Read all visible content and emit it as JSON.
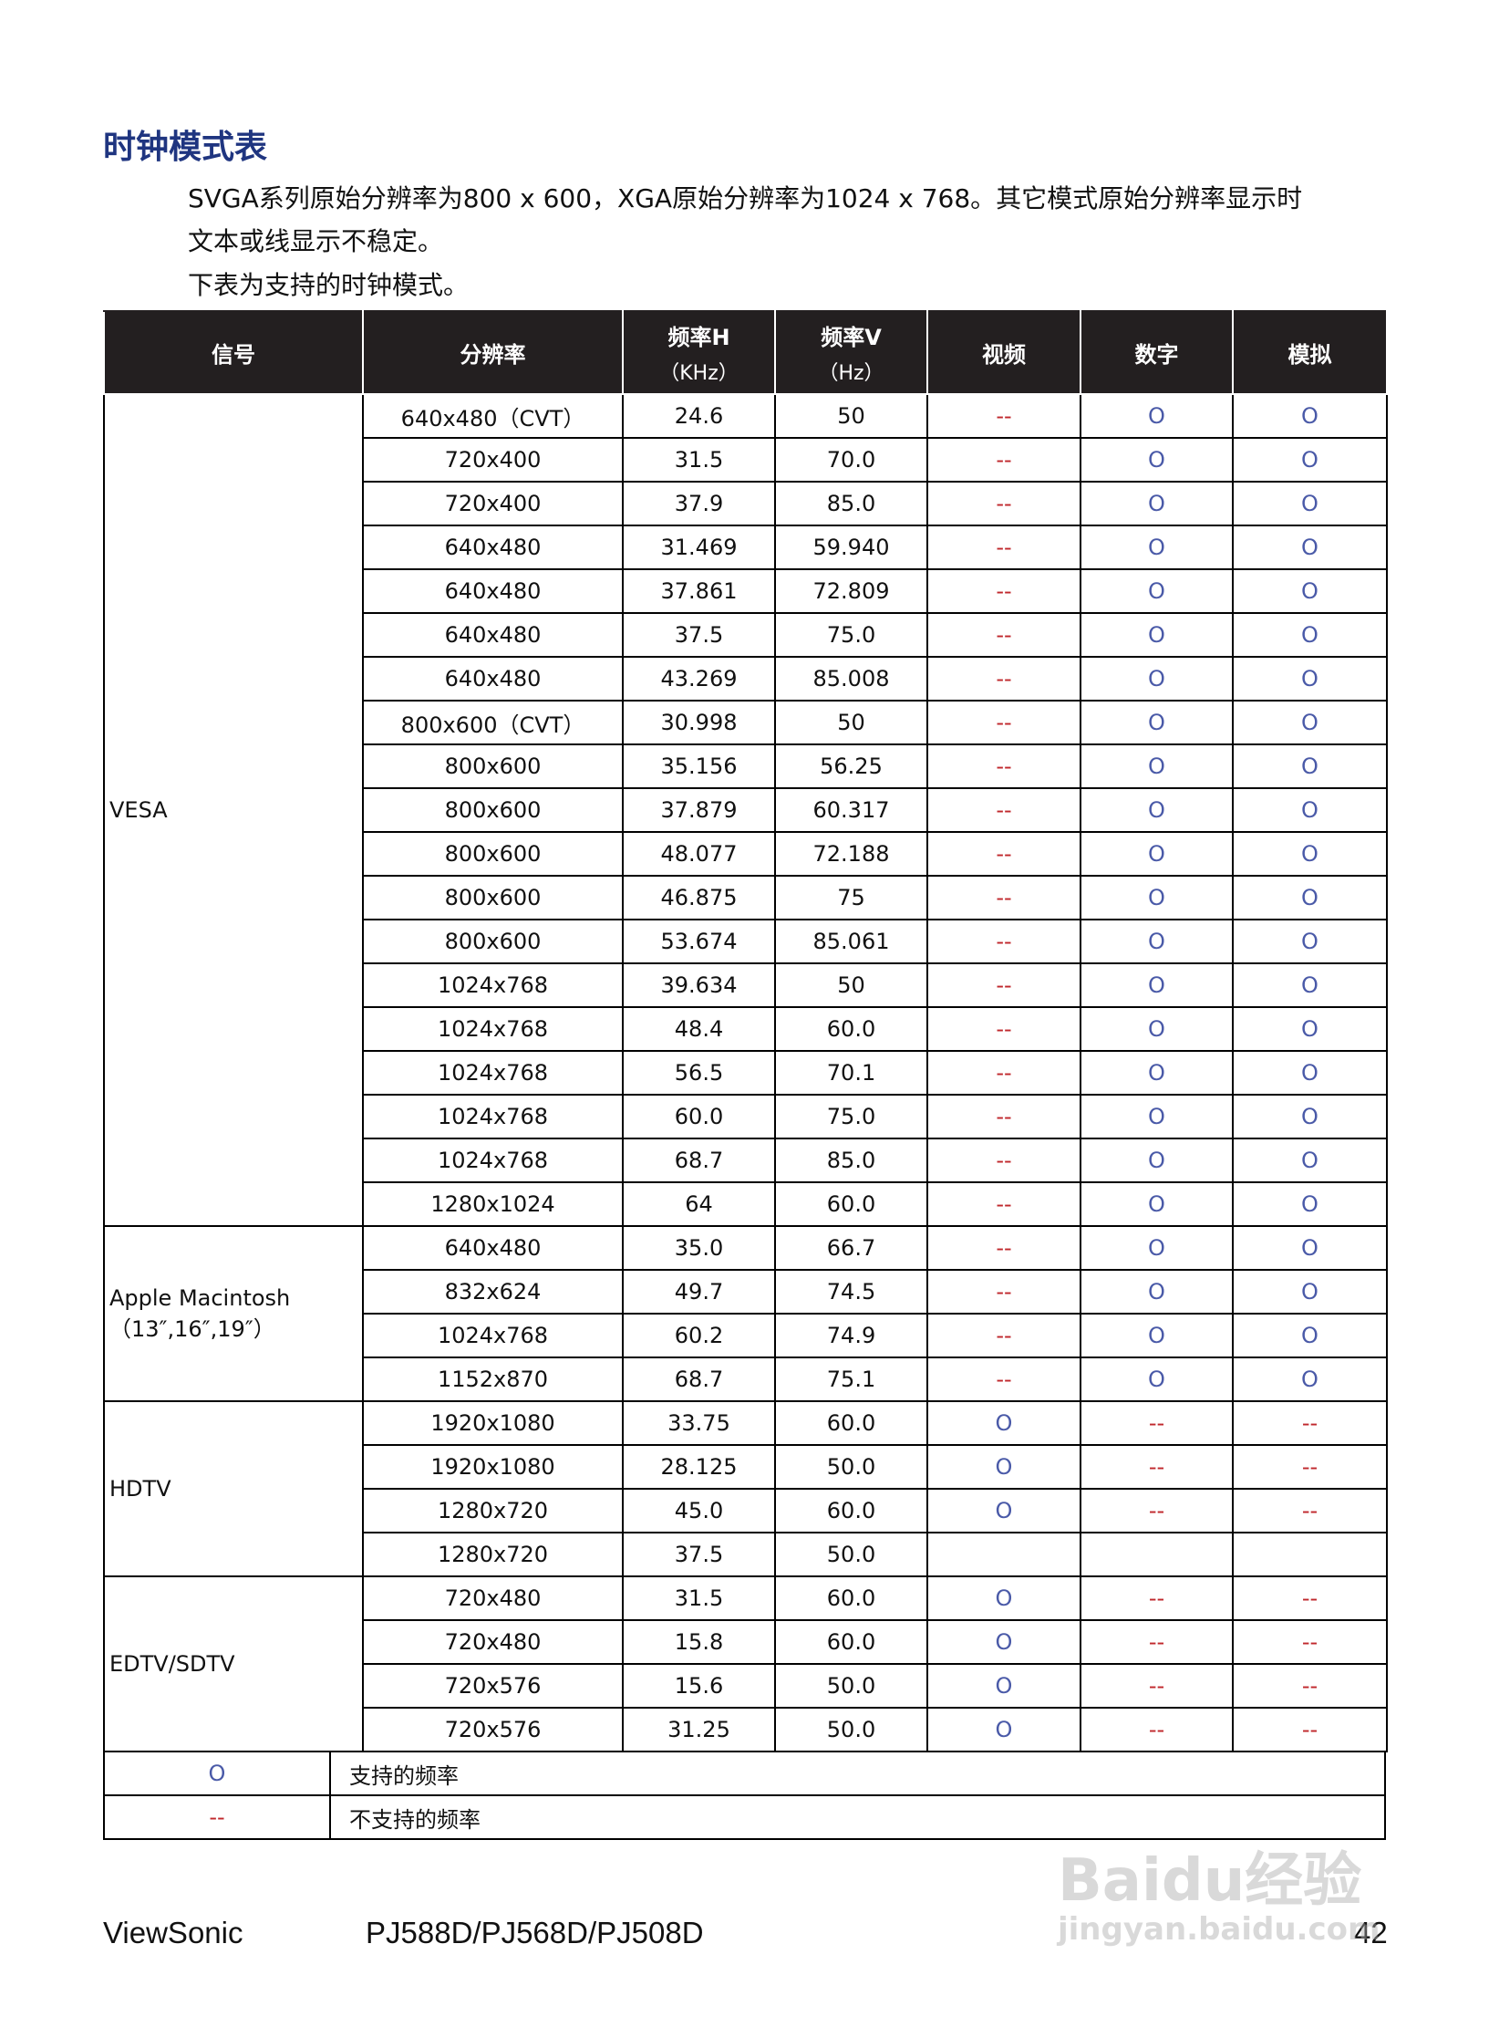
{
  "title": "时钟模式表",
  "intro": [
    "SVGA系列原始分辨率为800 x 600，XGA原始分辨率为1024 x 768。其它模式原始分辨率显示时",
    "文本或线显示不稳定。",
    "下表为支持的时钟模式。"
  ],
  "table": {
    "header": [
      [
        "信号"
      ],
      [
        "分辨率"
      ],
      [
        "频率H",
        "（KHz）"
      ],
      [
        "频率V",
        "（Hz）"
      ],
      [
        "视频"
      ],
      [
        "数字"
      ],
      [
        "模拟"
      ]
    ],
    "groups": [
      {
        "signal": [
          "VESA"
        ],
        "rows": [
          [
            "640x480（CVT）",
            "24.6",
            "50",
            "--",
            "O",
            "O"
          ],
          [
            "720x400",
            "31.5",
            "70.0",
            "--",
            "O",
            "O"
          ],
          [
            "720x400",
            "37.9",
            "85.0",
            "--",
            "O",
            "O"
          ],
          [
            "640x480",
            "31.469",
            "59.940",
            "--",
            "O",
            "O"
          ],
          [
            "640x480",
            "37.861",
            "72.809",
            "--",
            "O",
            "O"
          ],
          [
            "640x480",
            "37.5",
            "75.0",
            "--",
            "O",
            "O"
          ],
          [
            "640x480",
            "43.269",
            "85.008",
            "--",
            "O",
            "O"
          ],
          [
            "800x600（CVT）",
            "30.998",
            "50",
            "--",
            "O",
            "O"
          ],
          [
            "800x600",
            "35.156",
            "56.25",
            "--",
            "O",
            "O"
          ],
          [
            "800x600",
            "37.879",
            "60.317",
            "--",
            "O",
            "O"
          ],
          [
            "800x600",
            "48.077",
            "72.188",
            "--",
            "O",
            "O"
          ],
          [
            "800x600",
            "46.875",
            "75",
            "--",
            "O",
            "O"
          ],
          [
            "800x600",
            "53.674",
            "85.061",
            "--",
            "O",
            "O"
          ],
          [
            "1024x768",
            "39.634",
            "50",
            "--",
            "O",
            "O"
          ],
          [
            "1024x768",
            "48.4",
            "60.0",
            "--",
            "O",
            "O"
          ],
          [
            "1024x768",
            "56.5",
            "70.1",
            "--",
            "O",
            "O"
          ],
          [
            "1024x768",
            "60.0",
            "75.0",
            "--",
            "O",
            "O"
          ],
          [
            "1024x768",
            "68.7",
            "85.0",
            "--",
            "O",
            "O"
          ],
          [
            "1280x1024",
            "64",
            "60.0",
            "--",
            "O",
            "O"
          ]
        ]
      },
      {
        "signal": [
          "Apple Macintosh",
          "（13″,16″,19″）"
        ],
        "rows": [
          [
            "640x480",
            "35.0",
            "66.7",
            "--",
            "O",
            "O"
          ],
          [
            "832x624",
            "49.7",
            "74.5",
            "--",
            "O",
            "O"
          ],
          [
            "1024x768",
            "60.2",
            "74.9",
            "--",
            "O",
            "O"
          ],
          [
            "1152x870",
            "68.7",
            "75.1",
            "--",
            "O",
            "O"
          ]
        ]
      },
      {
        "signal": [
          "HDTV"
        ],
        "rows": [
          [
            "1920x1080",
            "33.75",
            "60.0",
            "O",
            "--",
            "--"
          ],
          [
            "1920x1080",
            "28.125",
            "50.0",
            "O",
            "--",
            "--"
          ],
          [
            "1280x720",
            "45.0",
            "60.0",
            "O",
            "--",
            "--"
          ],
          [
            "1280x720",
            "37.5",
            "50.0",
            null,
            null,
            null
          ]
        ]
      },
      {
        "signal": [
          "EDTV/SDTV"
        ],
        "rows": [
          [
            "720x480",
            "31.5",
            "60.0",
            "O",
            "--",
            "--"
          ],
          [
            "720x480",
            "15.8",
            "60.0",
            "O",
            "--",
            "--"
          ],
          [
            "720x576",
            "15.6",
            "50.0",
            "O",
            "--",
            "--"
          ],
          [
            "720x576",
            "31.25",
            "50.0",
            "O",
            "--",
            "--"
          ]
        ]
      }
    ]
  },
  "legend": [
    {
      "symbol": "O",
      "label": "支持的频率",
      "color": "#4a5aa8"
    },
    {
      "symbol": "--",
      "label": "不支持的频率",
      "color": "#c0282d"
    }
  ],
  "footer": {
    "brand": "ViewSonic",
    "model": "PJ588D/PJ568D/PJ508D",
    "page": "42"
  },
  "watermark": [
    "Baidu经验",
    "jingyan.baidu.com"
  ]
}
